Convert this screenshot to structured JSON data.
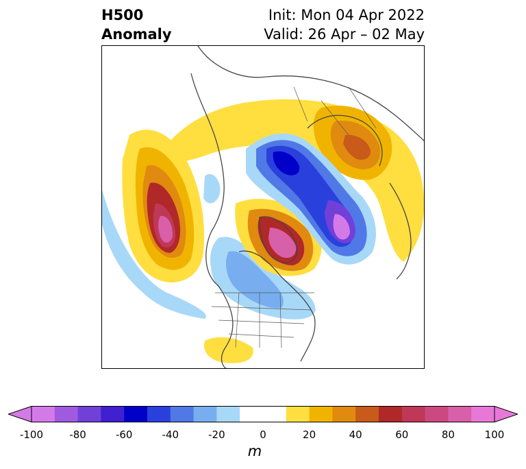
{
  "title": {
    "left_line1": "H500",
    "left_line2": "Anomaly",
    "right_line1": "Init: Mon 04 Apr 2022",
    "right_line2": "Valid: 26 Apr – 02 May"
  },
  "colorbar": {
    "ticks": [
      "-100",
      "-80",
      "-60",
      "-40",
      "-20",
      "0",
      "20",
      "40",
      "60",
      "80",
      "100"
    ],
    "unit": "m",
    "colors": [
      "#d47ae8",
      "#a05ae0",
      "#7040d8",
      "#4020d0",
      "#0000c8",
      "#2a40dc",
      "#5078e6",
      "#78aef0",
      "#a8d8f8",
      "#ffffff",
      "#ffffff",
      "#ffdf40",
      "#f0b400",
      "#e08a10",
      "#c85a1a",
      "#b02828",
      "#c03858",
      "#cc4880",
      "#d860a8",
      "#e878d8"
    ]
  }
}
